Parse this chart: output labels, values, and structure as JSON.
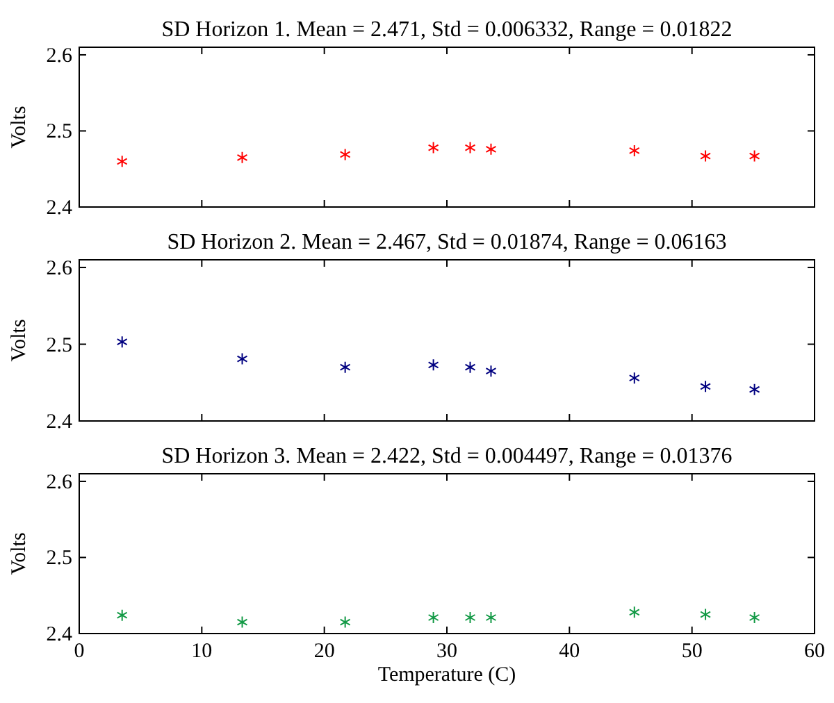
{
  "chart_data": [
    {
      "type": "scatter",
      "title": "SD Horizon 1. Mean = 2.471, Std = 0.006332, Range = 0.01822",
      "ylabel": "Volts",
      "x": [
        3.5,
        13.3,
        21.7,
        28.9,
        31.9,
        33.6,
        45.3,
        51.1,
        55.1
      ],
      "series": [
        {
          "color": "#ff0000",
          "values": [
            2.46,
            2.465,
            2.469,
            2.478,
            2.478,
            2.476,
            2.474,
            2.467,
            2.467
          ]
        }
      ],
      "xlim": [
        0,
        60
      ],
      "xticks": [
        0,
        10,
        20,
        30,
        40,
        50,
        60
      ],
      "ylim": [
        2.4,
        2.61
      ],
      "yticks": [
        2.4,
        2.5,
        2.6
      ],
      "tick_labels": "y",
      "marker": "cross"
    },
    {
      "type": "scatter",
      "title": "SD Horizon 2. Mean = 2.467, Std = 0.01874, Range = 0.06163",
      "ylabel": "Volts",
      "x": [
        3.5,
        13.3,
        21.7,
        28.9,
        31.9,
        33.6,
        45.3,
        51.1,
        55.1
      ],
      "series": [
        {
          "color": "#000080",
          "values": [
            2.503,
            2.481,
            2.47,
            2.473,
            2.47,
            2.465,
            2.456,
            2.445,
            2.441
          ]
        }
      ],
      "xlim": [
        0,
        60
      ],
      "xticks": [
        0,
        10,
        20,
        30,
        40,
        50,
        60
      ],
      "ylim": [
        2.4,
        2.61
      ],
      "yticks": [
        2.4,
        2.5,
        2.6
      ],
      "tick_labels": "y",
      "marker": "cross"
    },
    {
      "type": "scatter",
      "title": "SD Horizon 3. Mean = 2.422, Std = 0.004497, Range = 0.01376",
      "xlabel": "Temperature (C)",
      "ylabel": "Volts",
      "x": [
        3.5,
        13.3,
        21.7,
        28.9,
        31.9,
        33.6,
        45.3,
        51.1,
        55.1
      ],
      "series": [
        {
          "color": "#119944",
          "values": [
            2.424,
            2.415,
            2.415,
            2.421,
            2.421,
            2.421,
            2.428,
            2.425,
            2.421
          ]
        }
      ],
      "xlim": [
        0,
        60
      ],
      "xticks": [
        0,
        10,
        20,
        30,
        40,
        50,
        60
      ],
      "ylim": [
        2.4,
        2.61
      ],
      "yticks": [
        2.4,
        2.5,
        2.6
      ],
      "marker": "cross"
    }
  ]
}
